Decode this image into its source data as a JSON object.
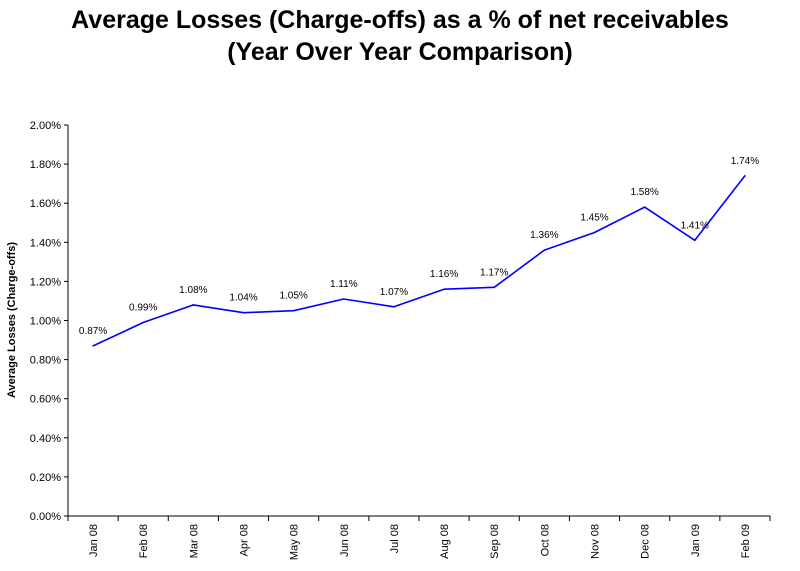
{
  "chart_data": {
    "type": "line",
    "title": "Average Losses (Charge-offs) as a % of net receivables",
    "subtitle": "(Year Over Year Comparison)",
    "xlabel": "",
    "ylabel": "Average Losses (Charge-offs)",
    "categories": [
      "Jan 08",
      "Feb 08",
      "Mar 08",
      "Apr 08",
      "May 08",
      "Jun 08",
      "Jul 08",
      "Aug 08",
      "Sep 08",
      "Oct 08",
      "Nov 08",
      "Dec 08",
      "Jan 09",
      "Feb 09"
    ],
    "series": [
      {
        "values": [
          0.87,
          0.99,
          1.08,
          1.04,
          1.05,
          1.11,
          1.07,
          1.16,
          1.17,
          1.36,
          1.45,
          1.58,
          1.41,
          1.74
        ],
        "labels": [
          "0.87%",
          "0.99%",
          "1.08%",
          "1.04%",
          "1.05%",
          "1.11%",
          "1.07%",
          "1.16%",
          "1.17%",
          "1.36%",
          "1.45%",
          "1.58%",
          "1.41%",
          "1.74%"
        ],
        "color": "#0000ff"
      }
    ],
    "ylim": [
      0,
      2
    ],
    "yticks": [
      0,
      0.2,
      0.4,
      0.6,
      0.8,
      1.0,
      1.2,
      1.4,
      1.6,
      1.8,
      2.0
    ],
    "ytick_labels": [
      "0.00%",
      "0.20%",
      "0.40%",
      "0.60%",
      "0.80%",
      "1.00%",
      "1.20%",
      "1.40%",
      "1.60%",
      "1.80%",
      "2.00%"
    ],
    "grid": false,
    "legend": "none"
  }
}
